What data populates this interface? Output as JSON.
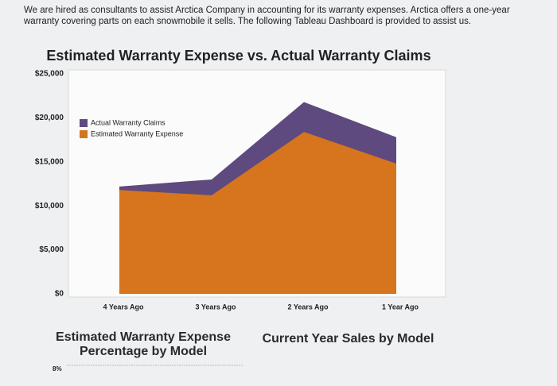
{
  "intro": "We are hired as consultants to assist Arctica Company in accounting for its warranty expenses. Arctica offers a one-year warranty covering parts on each snowmobile it sells. The following Tableau Dashboard is provided to assist us.",
  "chart_data": [
    {
      "type": "area",
      "title": "Estimated Warranty Expense vs. Actual Warranty Claims",
      "categories": [
        "4 Years Ago",
        "3 Years Ago",
        "2 Years Ago",
        "1 Year Ago"
      ],
      "series": [
        {
          "name": "Actual Warranty Claims",
          "color": "#5e4a7e",
          "values": [
            12200,
            13000,
            21800,
            17800
          ]
        },
        {
          "name": "Estimated Warranty Expense",
          "color": "#d7741e",
          "values": [
            11800,
            11200,
            18400,
            14800
          ]
        }
      ],
      "ylim": [
        0,
        25000
      ],
      "yticks": [
        {
          "value": 0,
          "label": "$0"
        },
        {
          "value": 5000,
          "label": "$5,000"
        },
        {
          "value": 10000,
          "label": "$10,000"
        },
        {
          "value": 15000,
          "label": "$15,000"
        },
        {
          "value": 20000,
          "label": "$20,000"
        },
        {
          "value": 25000,
          "label": "$25,000"
        }
      ],
      "legend": "upper left"
    },
    {
      "type": "bar",
      "title": "Estimated Warranty Expense Percentage by Model",
      "yticks": [
        {
          "value": 8,
          "label": "8%"
        }
      ]
    },
    {
      "type": "bar",
      "title": "Current Year Sales by Model"
    }
  ]
}
